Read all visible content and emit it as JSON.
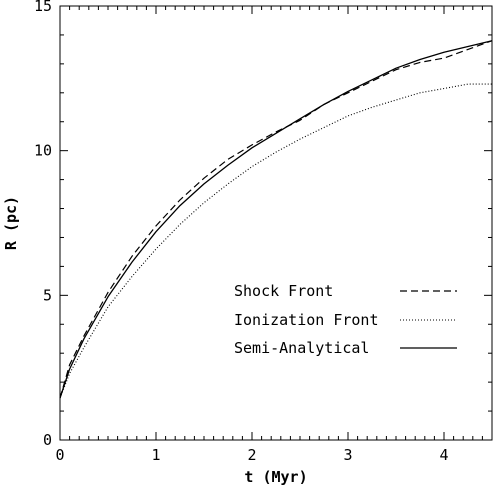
{
  "chart_data": {
    "type": "line",
    "xlabel": "t (Myr)",
    "ylabel": "R (pc)",
    "xlim": [
      0,
      4.5
    ],
    "ylim": [
      0,
      15
    ],
    "xticks": [
      0,
      1,
      2,
      3,
      4
    ],
    "yticks": [
      0,
      5,
      10,
      15
    ],
    "x_tick_labels": [
      "0",
      "1",
      "2",
      "3",
      "4"
    ],
    "y_tick_labels": [
      "0",
      "5",
      "10",
      "15"
    ],
    "grid": false,
    "legend_position": "lower-right",
    "series": [
      {
        "name": "Shock Front",
        "style": "dashed",
        "x": [
          0,
          0.1,
          0.25,
          0.5,
          0.75,
          1.0,
          1.25,
          1.5,
          1.75,
          2.0,
          2.25,
          2.5,
          2.75,
          3.0,
          3.25,
          3.5,
          3.75,
          4.0,
          4.25,
          4.5
        ],
        "y": [
          1.45,
          2.6,
          3.6,
          5.1,
          6.35,
          7.4,
          8.3,
          9.05,
          9.7,
          10.2,
          10.65,
          11.05,
          11.6,
          12.0,
          12.4,
          12.8,
          13.05,
          13.2,
          13.5,
          13.8
        ]
      },
      {
        "name": "Ionization Front",
        "style": "dotted",
        "x": [
          0,
          0.1,
          0.25,
          0.5,
          0.75,
          1.0,
          1.25,
          1.5,
          1.75,
          2.0,
          2.25,
          2.5,
          2.75,
          3.0,
          3.25,
          3.5,
          3.75,
          4.0,
          4.25,
          4.5
        ],
        "y": [
          1.45,
          2.3,
          3.2,
          4.6,
          5.65,
          6.6,
          7.45,
          8.2,
          8.85,
          9.45,
          9.95,
          10.4,
          10.8,
          11.2,
          11.5,
          11.75,
          12.0,
          12.15,
          12.3,
          12.3
        ]
      },
      {
        "name": "Semi-Analytical",
        "style": "solid",
        "x": [
          0,
          0.1,
          0.25,
          0.5,
          0.75,
          1.0,
          1.25,
          1.5,
          1.75,
          2.0,
          2.25,
          2.5,
          2.75,
          3.0,
          3.25,
          3.5,
          3.75,
          4.0,
          4.25,
          4.5
        ],
        "y": [
          1.45,
          2.45,
          3.5,
          4.95,
          6.15,
          7.2,
          8.1,
          8.85,
          9.5,
          10.1,
          10.6,
          11.1,
          11.6,
          12.05,
          12.45,
          12.85,
          13.15,
          13.4,
          13.6,
          13.8
        ]
      }
    ]
  }
}
